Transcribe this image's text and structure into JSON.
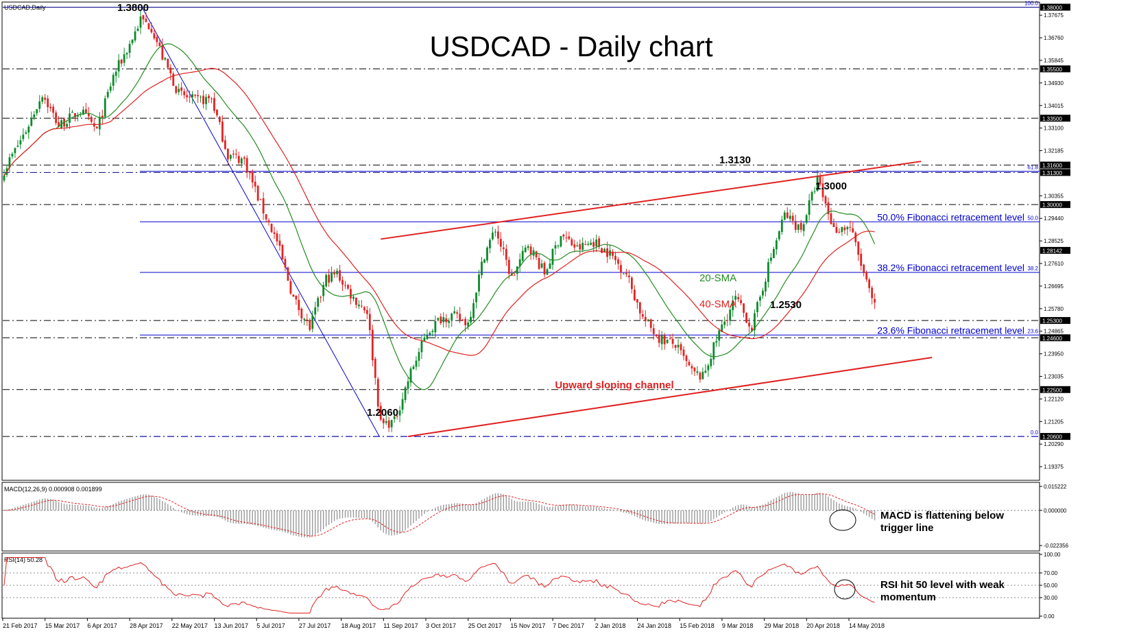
{
  "window_label": "USDCAD,Daily",
  "chart_data": [
    {
      "panel": "price",
      "type": "candlestick",
      "title": "USDCAD - Daily chart",
      "ylim": [
        1.1885,
        1.3818
      ],
      "y_ticks": [
        1.37675,
        1.3676,
        1.35845,
        1.3493,
        1.34015,
        1.331,
        1.32185,
        1.30355,
        1.2944,
        1.28525,
        1.2761,
        1.26695,
        1.2578,
        1.24865,
        1.2395,
        1.23035,
        1.2212,
        1.21205,
        1.2029,
        1.19375
      ],
      "x_labels": [
        "21 Feb 2017",
        "15 Mar 2017",
        "6 Apr 2017",
        "28 Apr 2017",
        "22 May 2017",
        "13 Jun 2017",
        "5 Jul 2017",
        "27 Jul 2017",
        "18 Aug 2017",
        "11 Sep 2017",
        "3 Oct 2017",
        "25 Oct 2017",
        "15 Nov 2017",
        "7 Dec 2017",
        "2 Jan 2018",
        "24 Jan 2018",
        "15 Feb 2018",
        "9 Mar 2018",
        "29 Mar 2018",
        "20 Apr 2018",
        "14 May 2018"
      ],
      "candle_count": 320,
      "close_path": [
        [
          0,
          1.314
        ],
        [
          8,
          1.33
        ],
        [
          14,
          1.345
        ],
        [
          20,
          1.332
        ],
        [
          28,
          1.338
        ],
        [
          34,
          1.33
        ],
        [
          40,
          1.352
        ],
        [
          46,
          1.365
        ],
        [
          50,
          1.375
        ],
        [
          54,
          1.372
        ],
        [
          58,
          1.36
        ],
        [
          64,
          1.345
        ],
        [
          70,
          1.342
        ],
        [
          76,
          1.343
        ],
        [
          82,
          1.32
        ],
        [
          88,
          1.318
        ],
        [
          94,
          1.3
        ],
        [
          100,
          1.285
        ],
        [
          106,
          1.262
        ],
        [
          112,
          1.25
        ],
        [
          118,
          1.27
        ],
        [
          122,
          1.272
        ],
        [
          128,
          1.262
        ],
        [
          133,
          1.257
        ],
        [
          138,
          1.211
        ],
        [
          143,
          1.212
        ],
        [
          149,
          1.232
        ],
        [
          155,
          1.248
        ],
        [
          160,
          1.254
        ],
        [
          164,
          1.255
        ],
        [
          170,
          1.252
        ],
        [
          176,
          1.28
        ],
        [
          180,
          1.29
        ],
        [
          186,
          1.27
        ],
        [
          192,
          1.284
        ],
        [
          198,
          1.272
        ],
        [
          204,
          1.288
        ],
        [
          210,
          1.282
        ],
        [
          216,
          1.285
        ],
        [
          222,
          1.28
        ],
        [
          228,
          1.272
        ],
        [
          234,
          1.254
        ],
        [
          240,
          1.246
        ],
        [
          246,
          1.243
        ],
        [
          252,
          1.232
        ],
        [
          256,
          1.23
        ],
        [
          262,
          1.248
        ],
        [
          268,
          1.262
        ],
        [
          274,
          1.25
        ],
        [
          280,
          1.275
        ],
        [
          286,
          1.296
        ],
        [
          292,
          1.29
        ],
        [
          298,
          1.31
        ],
        [
          304,
          1.29
        ],
        [
          310,
          1.291
        ],
        [
          316,
          1.268
        ],
        [
          320,
          1.255
        ],
        [
          324,
          1.256
        ],
        [
          330,
          1.288
        ],
        [
          336,
          1.29
        ],
        [
          342,
          1.292
        ],
        [
          346,
          1.298
        ],
        [
          350,
          1.28
        ],
        [
          355,
          1.285
        ],
        [
          360,
          1.2814
        ]
      ],
      "levels": [
        {
          "value": 1.38,
          "label": "1.38000",
          "style": "solid",
          "color": "#00008B"
        },
        {
          "value": 1.355,
          "label": "1.35500",
          "style": "dashdot",
          "color": "#000000"
        },
        {
          "value": 1.335,
          "label": "1.33500",
          "style": "dashdot",
          "color": "#000000"
        },
        {
          "value": 1.316,
          "label": "1.31600",
          "style": "dashdot",
          "color": "#000000"
        },
        {
          "value": 1.313,
          "label": "1.31300",
          "style": "dashdot",
          "color": "#00008B"
        },
        {
          "value": 1.3,
          "label": "1.30000",
          "style": "dashdot",
          "color": "#000000"
        },
        {
          "value": 1.253,
          "label": "1.25300",
          "style": "dashdot",
          "color": "#000000"
        },
        {
          "value": 1.246,
          "label": "1.24600",
          "style": "dashdot",
          "color": "#000000"
        },
        {
          "value": 1.225,
          "label": "1.22500",
          "style": "dashdot",
          "color": "#000000"
        },
        {
          "value": 1.206,
          "label": "1.20600",
          "style": "dashdot",
          "color": "#000000"
        }
      ],
      "current_price": {
        "value": 1.28142,
        "label": "1.28142"
      },
      "fibonacci": [
        {
          "pct": "100.0",
          "value": 1.38,
          "text": ""
        },
        {
          "pct": "61.8",
          "value": 1.3135,
          "text": ""
        },
        {
          "pct": "50.0",
          "value": 1.293,
          "text": "50.0% Fibonacci retracement level"
        },
        {
          "pct": "38.2",
          "value": 1.2725,
          "text": "38.2% Fibonacci retracement level"
        },
        {
          "pct": "23.6",
          "value": 1.2471,
          "text": "23.6% Fibonacci retracement level"
        },
        {
          "pct": "0.0",
          "value": 1.206,
          "text": ""
        }
      ],
      "annotations": [
        {
          "text": "1.3800",
          "color": "#000000"
        },
        {
          "text": "1.3130",
          "color": "#000000"
        },
        {
          "text": "1.3000",
          "color": "#000000"
        },
        {
          "text": "1.2530",
          "color": "#000000"
        },
        {
          "text": "1.2060",
          "color": "#000000"
        },
        {
          "text": "20-SMA",
          "color": "#228B22"
        },
        {
          "text": "40-SMA",
          "color": "#E02020"
        },
        {
          "text": "Upward sloping channel",
          "color": "#E02020"
        }
      ],
      "channel": {
        "upper": [
          [
            138,
            1.286
          ],
          [
            336,
            1.3175
          ]
        ],
        "lower": [
          [
            148,
            1.206
          ],
          [
            340,
            1.238
          ]
        ]
      },
      "sma": [
        {
          "name": "20-SMA",
          "period": 20,
          "color": "#228B22"
        },
        {
          "name": "40-SMA",
          "period": 40,
          "color": "#E02020"
        }
      ],
      "colors": {
        "bull": "#0A8A2A",
        "bear": "#E32222",
        "fib": "#0000CD",
        "channel": "#E02020"
      }
    },
    {
      "panel": "macd",
      "type": "histogram",
      "header": "MACD(12,26,9) 0.000908 0.001899",
      "y_ticks": [
        "0.015222",
        "0.000000",
        "-0.022356"
      ],
      "ylim": [
        -0.0245,
        0.0165
      ],
      "annotation": "MACD is flattening below trigger line"
    },
    {
      "panel": "rsi",
      "type": "line",
      "header": "RSI(14) 50.28",
      "y_ticks": [
        "100.00",
        "70.00",
        "50.00",
        "30.00",
        "0.00"
      ],
      "ylim": [
        0,
        100
      ],
      "annotation": "RSI hit 50 level with weak momentum"
    }
  ]
}
